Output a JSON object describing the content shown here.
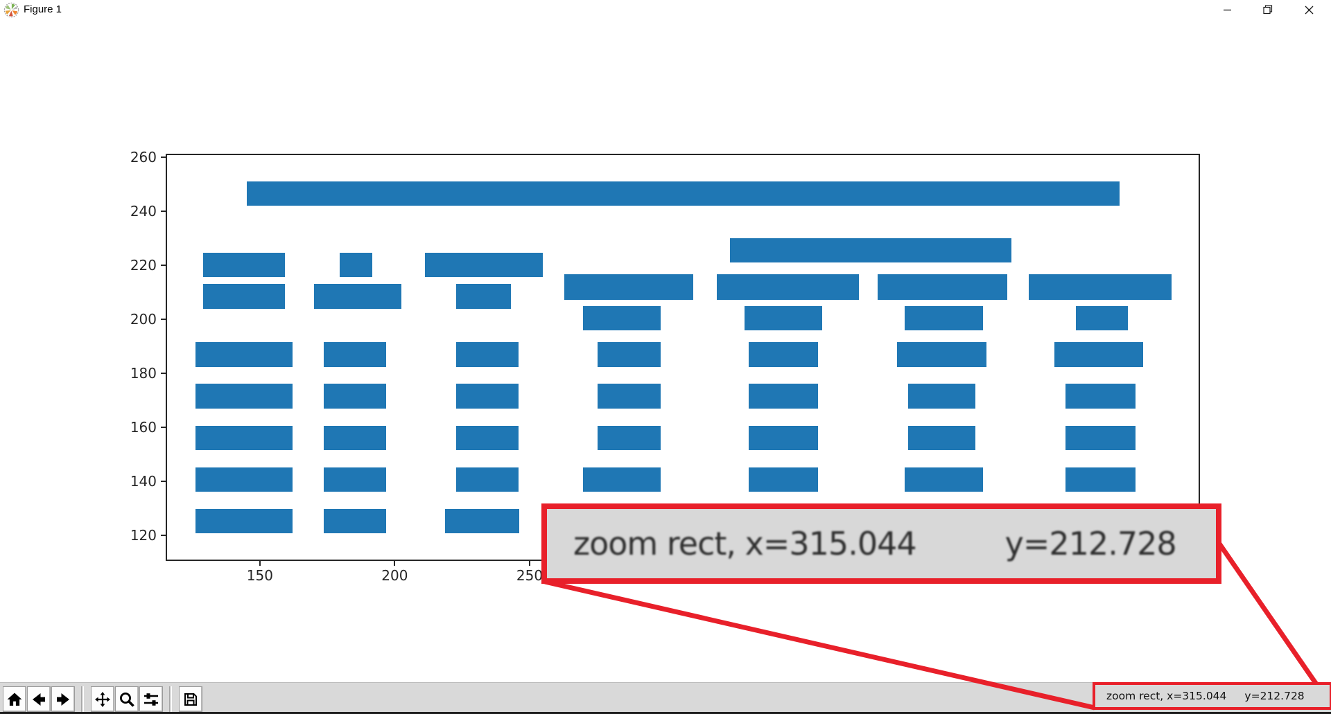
{
  "window": {
    "title": "Figure 1",
    "controls": [
      "minimize",
      "restore",
      "close"
    ]
  },
  "toolbar": {
    "button_groups": [
      [
        "home",
        "back",
        "forward"
      ],
      [
        "pan",
        "zoom-to-rect",
        "configure-subplots"
      ],
      [
        "save"
      ]
    ],
    "status": {
      "part1": "zoom rect, x=315.044",
      "part2": "y=212.728"
    }
  },
  "magnifier_callout": {
    "part1": "zoom rect, x=315.044",
    "part2": "y=212.728",
    "border_color": "#e8202a"
  },
  "chart_data": {
    "type": "bar",
    "orientation": "horizontal",
    "title": "",
    "xlabel": "",
    "ylabel": "",
    "bar_color": "#1f77b4",
    "grid": false,
    "legend": null,
    "xlim": [
      115.6,
      498.0
    ],
    "ylim": [
      111.1,
      260.8
    ],
    "xticks": [
      150,
      200,
      250
    ],
    "yticks": [
      260,
      240,
      220,
      200,
      180,
      160,
      140,
      120
    ],
    "bars_format": "[x_left, y_bottom, width, height] in data units",
    "bars": [
      [
        145.1,
        242.0,
        323.6,
        9.1
      ],
      [
        324.2,
        221.0,
        104.5,
        9.1
      ],
      [
        129.0,
        215.6,
        30.2,
        9.1
      ],
      [
        179.7,
        215.6,
        12.0,
        9.1
      ],
      [
        211.2,
        215.6,
        43.7,
        9.1
      ],
      [
        262.8,
        207.2,
        47.9,
        9.4
      ],
      [
        319.5,
        207.2,
        52.6,
        9.4
      ],
      [
        379.0,
        207.2,
        48.2,
        9.4
      ],
      [
        435.0,
        207.2,
        52.9,
        9.4
      ],
      [
        129.0,
        204.0,
        30.2,
        9.1
      ],
      [
        170.0,
        204.0,
        32.4,
        9.1
      ],
      [
        222.8,
        204.0,
        20.2,
        9.1
      ],
      [
        269.7,
        195.9,
        29.0,
        9.1
      ],
      [
        329.6,
        195.9,
        28.9,
        9.1
      ],
      [
        389.1,
        195.9,
        28.9,
        9.1
      ],
      [
        452.6,
        195.9,
        19.2,
        9.1
      ],
      [
        126.2,
        182.4,
        35.9,
        9.1
      ],
      [
        173.7,
        182.4,
        23.0,
        9.1
      ],
      [
        222.8,
        182.4,
        23.0,
        9.1
      ],
      [
        275.1,
        182.4,
        23.6,
        9.1
      ],
      [
        331.1,
        182.4,
        25.8,
        9.1
      ],
      [
        386.2,
        182.4,
        33.1,
        9.1
      ],
      [
        444.5,
        182.4,
        33.0,
        9.1
      ],
      [
        126.2,
        167.0,
        35.9,
        9.1
      ],
      [
        173.7,
        167.0,
        23.0,
        9.1
      ],
      [
        222.8,
        167.0,
        23.0,
        9.1
      ],
      [
        275.1,
        167.0,
        23.6,
        9.1
      ],
      [
        331.1,
        167.0,
        25.8,
        9.1
      ],
      [
        390.3,
        167.0,
        24.9,
        9.1
      ],
      [
        448.6,
        167.0,
        26.1,
        9.1
      ],
      [
        126.2,
        151.6,
        35.9,
        9.1
      ],
      [
        173.7,
        151.6,
        23.0,
        9.1
      ],
      [
        222.8,
        151.6,
        23.0,
        9.1
      ],
      [
        275.1,
        151.6,
        23.6,
        9.1
      ],
      [
        331.1,
        151.6,
        25.8,
        9.1
      ],
      [
        390.3,
        151.6,
        24.9,
        9.1
      ],
      [
        448.6,
        151.6,
        26.1,
        9.1
      ],
      [
        126.2,
        136.2,
        35.9,
        9.1
      ],
      [
        173.7,
        136.2,
        23.0,
        9.1
      ],
      [
        222.8,
        136.2,
        23.0,
        9.1
      ],
      [
        269.7,
        136.2,
        29.0,
        9.1
      ],
      [
        331.1,
        136.2,
        25.8,
        9.1
      ],
      [
        389.1,
        136.2,
        28.9,
        9.1
      ],
      [
        448.6,
        136.2,
        26.1,
        9.1
      ],
      [
        126.2,
        120.8,
        35.9,
        9.1
      ],
      [
        173.7,
        120.8,
        23.0,
        9.1
      ],
      [
        218.6,
        120.8,
        27.5,
        9.1
      ]
    ]
  }
}
